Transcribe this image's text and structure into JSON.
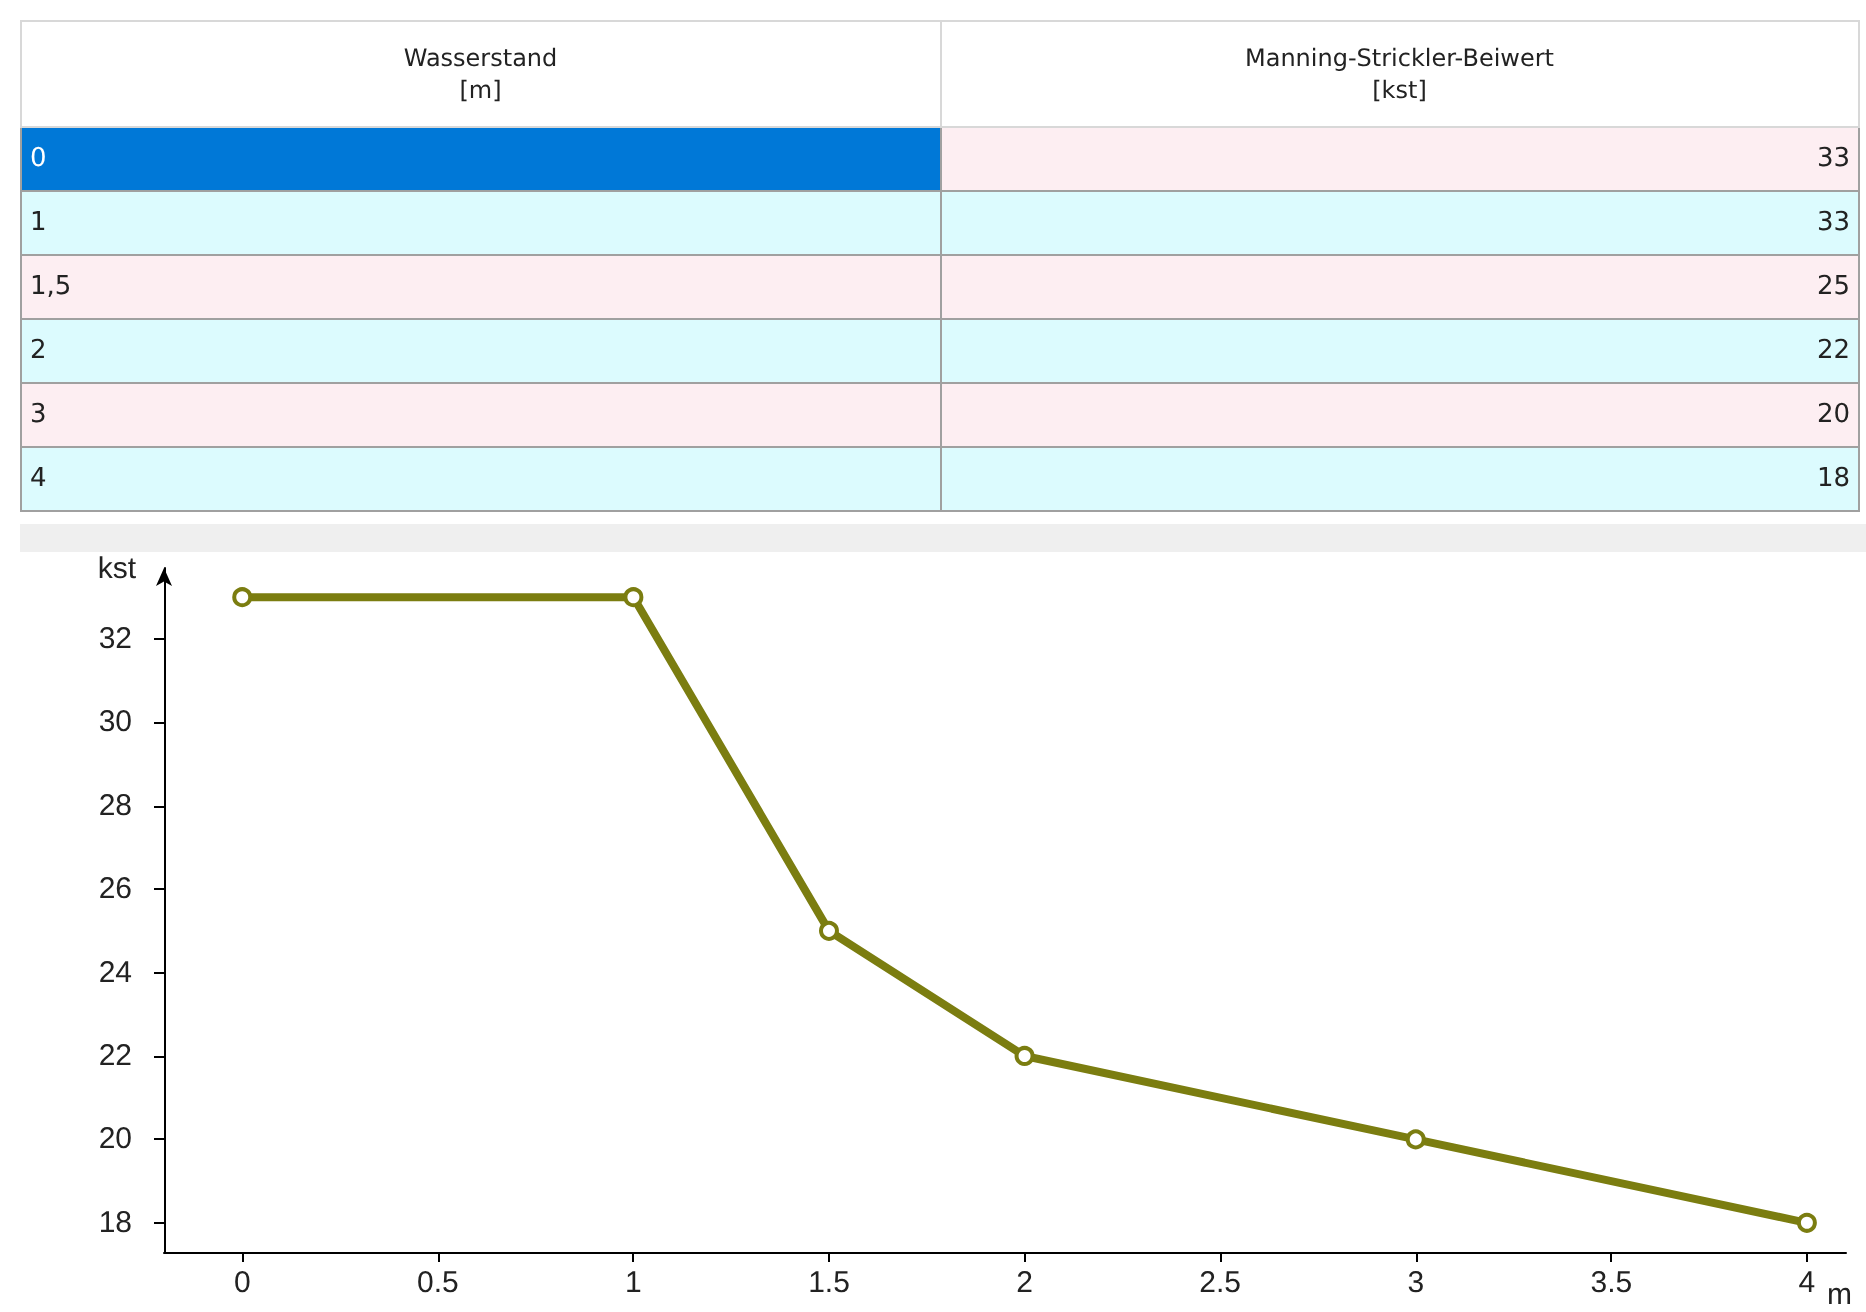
{
  "chart_data": [
    {
      "type": "other",
      "categories": [
        "0",
        "1",
        "1,5",
        "2",
        "3",
        "4"
      ],
      "values": [
        33,
        33,
        25,
        22,
        20,
        18
      ],
      "xlabel": "Wasserstand\n[m]",
      "ylabel": "Manning-Strickler-Beiwert\n[kst]",
      "data_labels": true
    },
    {
      "type": "line",
      "x": [
        0,
        1,
        1.5,
        2,
        3,
        4
      ],
      "values": [
        33,
        33,
        25,
        22,
        20,
        18
      ],
      "color": "#7b7d10",
      "xlabel": "m",
      "ylabel": "kst",
      "xlim": [
        -0.2,
        4.1
      ],
      "xticks": [
        0,
        0.5,
        1,
        1.5,
        2,
        2.5,
        3,
        3.5,
        4
      ],
      "ylim": [
        17.3,
        33.7
      ],
      "yticks": [
        18,
        20,
        22,
        24,
        26,
        28,
        30,
        32
      ],
      "grid": false,
      "marker": "circle",
      "line_style": "solid"
    }
  ]
}
